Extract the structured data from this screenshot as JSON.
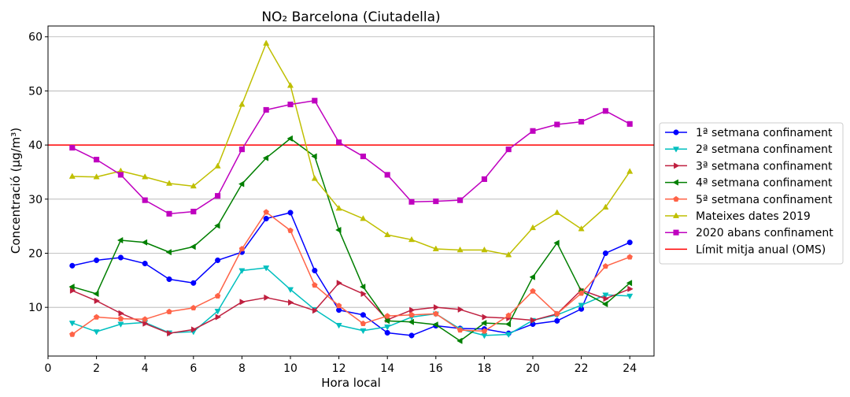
{
  "chart_data": {
    "type": "line",
    "title": "NO₂ Barcelona (Ciutadella)",
    "xlabel": "Hora local",
    "ylabel": "Concentració (µg/m³)",
    "xlim": [
      0,
      25
    ],
    "ylim": [
      1,
      62
    ],
    "xticks": [
      0,
      2,
      4,
      6,
      8,
      10,
      12,
      14,
      16,
      18,
      20,
      22,
      24
    ],
    "yticks": [
      10,
      20,
      30,
      40,
      50,
      60
    ],
    "grid": "horizontal",
    "legend_position": "center-right outside",
    "x": [
      1,
      2,
      3,
      4,
      5,
      6,
      7,
      8,
      9,
      10,
      11,
      12,
      13,
      14,
      15,
      16,
      17,
      18,
      19,
      20,
      21,
      22,
      23,
      24
    ],
    "series": [
      {
        "name": "1ª setmana confinament",
        "color": "#0000ff",
        "marker": "circle",
        "values": [
          17.7,
          18.7,
          19.2,
          18.1,
          15.2,
          14.5,
          18.7,
          20.2,
          26.4,
          27.5,
          16.8,
          9.5,
          8.6,
          5.3,
          4.8,
          6.6,
          6.1,
          6.0,
          5.2,
          6.9,
          7.5,
          9.7,
          20.0,
          22.0
        ]
      },
      {
        "name": "2ª setmana confinament",
        "color": "#00bfbf",
        "marker": "triangle-down",
        "values": [
          7.1,
          5.5,
          6.9,
          7.2,
          5.3,
          5.5,
          9.3,
          16.8,
          17.3,
          13.3,
          9.6,
          6.7,
          5.7,
          6.4,
          8.2,
          8.8,
          6.0,
          4.8,
          5.0,
          7.6,
          8.6,
          10.4,
          12.3,
          12.1
        ]
      },
      {
        "name": "3ª setmana confinament",
        "color": "#bf1f3f",
        "marker": "triangle-right",
        "values": [
          13.1,
          11.2,
          8.9,
          7.0,
          5.2,
          5.9,
          8.2,
          11.0,
          11.8,
          10.9,
          9.4,
          14.5,
          12.5,
          7.7,
          9.5,
          10.0,
          9.6,
          8.2,
          8.0,
          7.6,
          8.8,
          13.2,
          11.6,
          13.4
        ]
      },
      {
        "name": "4ª setmana confinament",
        "color": "#007f00",
        "marker": "triangle-left",
        "values": [
          13.8,
          12.5,
          22.4,
          22.0,
          20.2,
          21.2,
          25.1,
          32.8,
          37.6,
          41.2,
          37.9,
          24.3,
          13.8,
          7.5,
          7.3,
          6.8,
          3.8,
          7.1,
          6.9,
          15.6,
          21.9,
          13.0,
          10.6,
          14.5
        ]
      },
      {
        "name": "5ª setmana confinament",
        "color": "#ff6347",
        "marker": "pentagon",
        "values": [
          5.0,
          8.2,
          7.9,
          7.8,
          9.2,
          9.9,
          12.1,
          20.8,
          27.6,
          24.2,
          14.1,
          10.3,
          7.0,
          8.4,
          8.6,
          8.8,
          5.8,
          5.6,
          8.5,
          13.0,
          8.8,
          12.6,
          17.6,
          19.3
        ]
      },
      {
        "name": "Mateixes dates 2019",
        "color": "#bfbf00",
        "marker": "triangle-up",
        "values": [
          34.2,
          34.1,
          35.2,
          34.1,
          32.9,
          32.4,
          36.1,
          47.5,
          58.8,
          51.0,
          33.8,
          28.3,
          26.4,
          23.4,
          22.5,
          20.8,
          20.6,
          20.6,
          19.7,
          24.7,
          27.5,
          24.5,
          28.5,
          35.1
        ]
      },
      {
        "name": "2020 abans confinament",
        "color": "#bf00bf",
        "marker": "square",
        "values": [
          39.5,
          37.3,
          34.5,
          29.8,
          27.3,
          27.7,
          30.6,
          39.2,
          46.5,
          47.5,
          48.2,
          40.5,
          37.9,
          34.5,
          29.5,
          29.6,
          29.8,
          33.7,
          39.2,
          42.6,
          43.8,
          44.3,
          46.3,
          43.9
        ]
      }
    ],
    "reference_lines": [
      {
        "name": "Límit mitja anual (OMS)",
        "color": "#ff0000",
        "y": 40
      }
    ]
  }
}
